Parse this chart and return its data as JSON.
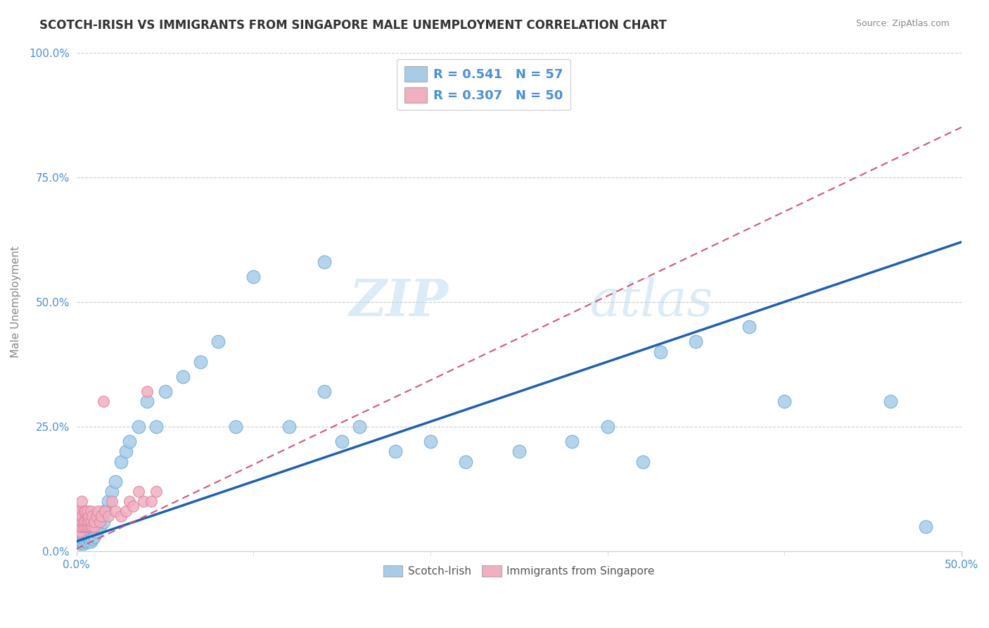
{
  "title": "SCOTCH-IRISH VS IMMIGRANTS FROM SINGAPORE MALE UNEMPLOYMENT CORRELATION CHART",
  "source": "Source: ZipAtlas.com",
  "ylabel": "Male Unemployment",
  "ylabel_ticks": [
    "0.0%",
    "25.0%",
    "50.0%",
    "75.0%",
    "100.0%"
  ],
  "ylabel_vals": [
    0.0,
    0.25,
    0.5,
    0.75,
    1.0
  ],
  "xmin": 0.0,
  "xmax": 0.5,
  "ymin": 0.0,
  "ymax": 1.0,
  "scotch_irish_R": 0.541,
  "scotch_irish_N": 57,
  "singapore_R": 0.307,
  "singapore_N": 50,
  "scotch_irish_color": "#a8cce8",
  "scotch_irish_edge_color": "#6aaad4",
  "scotch_irish_line_color": "#2060b0",
  "singapore_color": "#f0b0c0",
  "singapore_edge_color": "#e080a0",
  "singapore_line_color": "#d05878",
  "watermark": "ZIPatlas",
  "background_color": "#ffffff",
  "scotch_irish_x": [
    0.001,
    0.002,
    0.002,
    0.003,
    0.003,
    0.004,
    0.004,
    0.005,
    0.005,
    0.006,
    0.006,
    0.007,
    0.007,
    0.008,
    0.008,
    0.009,
    0.01,
    0.01,
    0.011,
    0.012,
    0.013,
    0.014,
    0.015,
    0.016,
    0.018,
    0.02,
    0.022,
    0.025,
    0.028,
    0.03,
    0.035,
    0.04,
    0.045,
    0.05,
    0.06,
    0.07,
    0.08,
    0.09,
    0.1,
    0.12,
    0.14,
    0.15,
    0.16,
    0.18,
    0.2,
    0.22,
    0.25,
    0.28,
    0.3,
    0.32,
    0.35,
    0.38,
    0.4,
    0.14,
    0.33,
    0.46,
    0.48
  ],
  "scotch_irish_y": [
    0.02,
    0.015,
    0.025,
    0.02,
    0.03,
    0.015,
    0.025,
    0.02,
    0.03,
    0.02,
    0.035,
    0.025,
    0.03,
    0.02,
    0.04,
    0.025,
    0.03,
    0.05,
    0.04,
    0.06,
    0.05,
    0.07,
    0.06,
    0.08,
    0.1,
    0.12,
    0.14,
    0.18,
    0.2,
    0.22,
    0.25,
    0.3,
    0.25,
    0.32,
    0.35,
    0.38,
    0.42,
    0.25,
    0.55,
    0.25,
    0.32,
    0.22,
    0.25,
    0.2,
    0.22,
    0.18,
    0.2,
    0.22,
    0.25,
    0.18,
    0.42,
    0.45,
    0.3,
    0.58,
    0.4,
    0.3,
    0.05
  ],
  "singapore_x": [
    0.0005,
    0.001,
    0.001,
    0.001,
    0.001,
    0.002,
    0.002,
    0.002,
    0.002,
    0.003,
    0.003,
    0.003,
    0.003,
    0.004,
    0.004,
    0.004,
    0.005,
    0.005,
    0.005,
    0.006,
    0.006,
    0.006,
    0.007,
    0.007,
    0.007,
    0.008,
    0.008,
    0.008,
    0.009,
    0.009,
    0.01,
    0.01,
    0.011,
    0.012,
    0.013,
    0.014,
    0.015,
    0.016,
    0.018,
    0.02,
    0.022,
    0.025,
    0.028,
    0.03,
    0.032,
    0.035,
    0.038,
    0.04,
    0.042,
    0.045
  ],
  "singapore_y": [
    0.05,
    0.04,
    0.05,
    0.06,
    0.08,
    0.04,
    0.05,
    0.06,
    0.08,
    0.05,
    0.06,
    0.07,
    0.1,
    0.05,
    0.06,
    0.08,
    0.05,
    0.06,
    0.08,
    0.05,
    0.06,
    0.08,
    0.05,
    0.06,
    0.07,
    0.05,
    0.06,
    0.08,
    0.05,
    0.07,
    0.05,
    0.06,
    0.07,
    0.08,
    0.06,
    0.07,
    0.3,
    0.08,
    0.07,
    0.1,
    0.08,
    0.07,
    0.08,
    0.1,
    0.09,
    0.12,
    0.1,
    0.32,
    0.1,
    0.12
  ]
}
